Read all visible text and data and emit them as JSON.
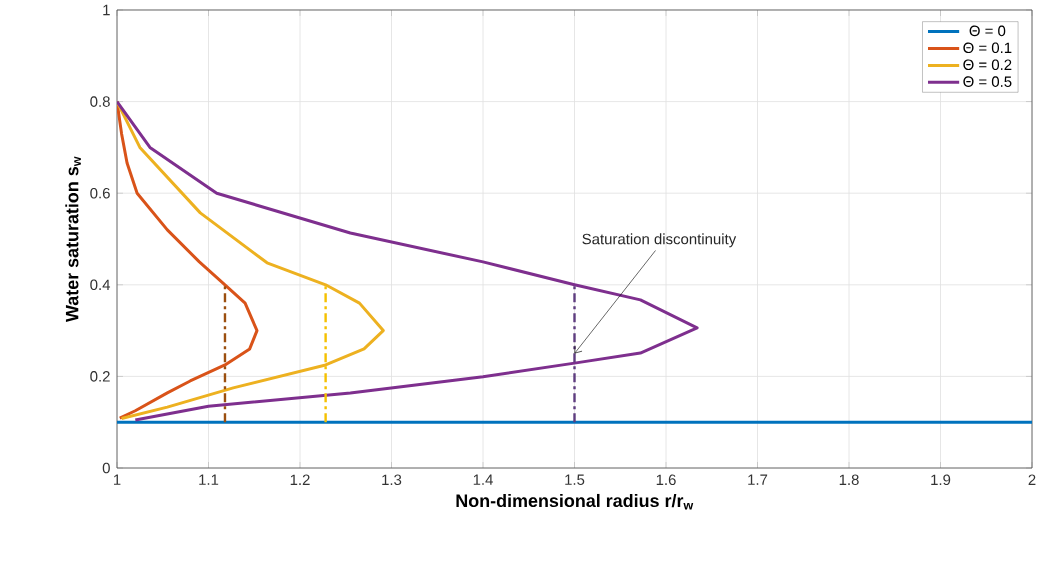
{
  "chart_data": {
    "type": "line",
    "xlabel": "Non-dimensional radius r/r$_{w}$",
    "ylabel": "Water saturation s$_{w}$",
    "xlim": [
      1,
      2
    ],
    "ylim": [
      0,
      1
    ],
    "xticks": [
      1,
      1.1,
      1.2,
      1.3,
      1.4,
      1.5,
      1.6,
      1.7,
      1.8,
      1.9,
      2
    ],
    "yticks": [
      0,
      0.2,
      0.4,
      0.6,
      0.8,
      1
    ],
    "grid": true,
    "legend": "top right",
    "marker": "none",
    "line_style": "solid",
    "series": [
      {
        "name": "Θ = 0",
        "color": "#0072bd",
        "x": [
          1,
          2
        ],
        "values": [
          0.1,
          0.1
        ]
      },
      {
        "name": "Θ = 0.1",
        "color": "#d95319",
        "x": [
          1.0,
          1.005,
          1.011,
          1.022,
          1.055,
          1.09,
          1.118,
          1.14,
          1.153,
          1.145,
          1.118,
          1.08,
          1.055,
          1.02,
          1.003
        ],
        "values": [
          0.8,
          0.73,
          0.666,
          0.6,
          0.52,
          0.45,
          0.4,
          0.36,
          0.3,
          0.26,
          0.225,
          0.19,
          0.164,
          0.125,
          0.109
        ]
      },
      {
        "name": "Θ = 0.2",
        "color": "#edb120",
        "x": [
          1.0,
          1.025,
          1.091,
          1.164,
          1.228,
          1.265,
          1.291,
          1.27,
          1.228,
          1.127,
          1.055,
          1.005
        ],
        "values": [
          0.8,
          0.7,
          0.557,
          0.448,
          0.4,
          0.36,
          0.3,
          0.26,
          0.225,
          0.175,
          0.133,
          0.108
        ]
      },
      {
        "name": "Θ = 0.5",
        "color": "#7e2f8e",
        "x": [
          1.0,
          1.036,
          1.109,
          1.255,
          1.4,
          1.5,
          1.572,
          1.634,
          1.572,
          1.5,
          1.4,
          1.255,
          1.1,
          1.02
        ],
        "values": [
          0.8,
          0.7,
          0.6,
          0.513,
          0.45,
          0.4,
          0.367,
          0.306,
          0.251,
          0.229,
          0.199,
          0.164,
          0.135,
          0.105
        ]
      },
      {
        "color": "#9b4f0f",
        "line_style": "dashed",
        "x": [
          1.118,
          1.118
        ],
        "values": [
          0.1,
          0.4
        ]
      },
      {
        "color": "#f5c000",
        "line_style": "dashed",
        "x": [
          1.228,
          1.228
        ],
        "values": [
          0.1,
          0.4
        ]
      },
      {
        "color": "#5e3d7f",
        "line_style": "dashed",
        "x": [
          1.5,
          1.5
        ],
        "values": [
          0.1,
          0.4
        ]
      }
    ],
    "annotations": [
      {
        "text": "Saturation discontinuity",
        "x": 1.5,
        "y": 0.25
      }
    ]
  }
}
